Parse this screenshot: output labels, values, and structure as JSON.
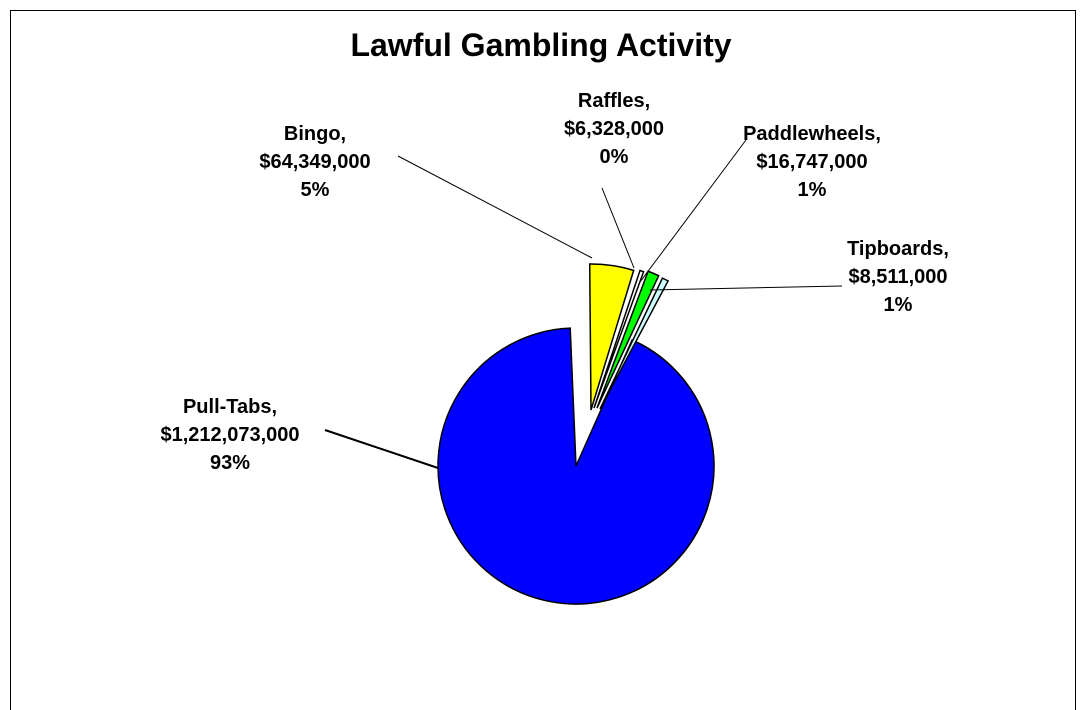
{
  "chart_data": {
    "type": "pie",
    "title": "Lawful Gambling Activity",
    "slices": [
      {
        "name": "Pull-Tabs",
        "value": 1212073000,
        "value_label": "$1,212,073,000",
        "percent_label": "93%",
        "color": "#0000ff",
        "exploded": false
      },
      {
        "name": "Bingo",
        "value": 64349000,
        "value_label": "$64,349,000",
        "percent_label": "5%",
        "color": "#ffff00",
        "exploded": true
      },
      {
        "name": "Raffles",
        "value": 6328000,
        "value_label": "$6,328,000",
        "percent_label": "0%",
        "color": "#ffffff",
        "exploded": true
      },
      {
        "name": "Paddlewheels",
        "value": 16747000,
        "value_label": "$16,747,000",
        "percent_label": "1%",
        "color": "#00ff00",
        "exploded": true
      },
      {
        "name": "Tipboards",
        "value": 8511000,
        "value_label": "$8,511,000",
        "percent_label": "1%",
        "color": "#ccffff",
        "exploded": true
      }
    ]
  }
}
